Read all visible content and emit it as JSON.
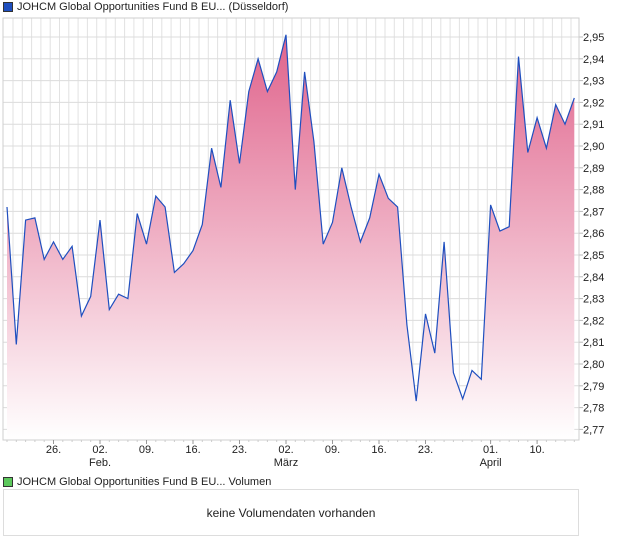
{
  "price_legend": {
    "label": "JOHCM Global Opportunities Fund B EU... (Düsseldorf)",
    "color": "#1f4fbf"
  },
  "volume_legend": {
    "label": "JOHCM Global Opportunities Fund B EU... Volumen",
    "color": "#5cc85c"
  },
  "volume_panel": {
    "message": "keine Volumendaten vorhanden"
  },
  "chart_data": {
    "type": "area",
    "title": "",
    "xlabel": "",
    "ylabel": "",
    "ylim": [
      2.764,
      2.959
    ],
    "grid": true,
    "line_color": "#1f4fbf",
    "fill_color": "#e0648c",
    "values": [
      2.872,
      2.809,
      2.866,
      2.867,
      2.848,
      2.856,
      2.848,
      2.854,
      2.822,
      2.831,
      2.866,
      2.825,
      2.832,
      2.83,
      2.869,
      2.855,
      2.877,
      2.872,
      2.842,
      2.846,
      2.852,
      2.864,
      2.899,
      2.881,
      2.921,
      2.892,
      2.925,
      2.94,
      2.925,
      2.934,
      2.951,
      2.88,
      2.934,
      2.902,
      2.855,
      2.865,
      2.89,
      2.872,
      2.856,
      2.867,
      2.887,
      2.876,
      2.872,
      2.818,
      2.783,
      2.823,
      2.805,
      2.856,
      2.796,
      2.784,
      2.797,
      2.793,
      2.873,
      2.861,
      2.863,
      2.941,
      2.897,
      2.913,
      2.899,
      2.919,
      2.91,
      2.922
    ],
    "x_ticks": [
      {
        "index": 5,
        "label": "26.",
        "sub": ""
      },
      {
        "index": 10,
        "label": "02.",
        "sub": "Feb."
      },
      {
        "index": 15,
        "label": "09.",
        "sub": ""
      },
      {
        "index": 20,
        "label": "16.",
        "sub": ""
      },
      {
        "index": 25,
        "label": "23.",
        "sub": ""
      },
      {
        "index": 30,
        "label": "02.",
        "sub": "März"
      },
      {
        "index": 35,
        "label": "09.",
        "sub": ""
      },
      {
        "index": 40,
        "label": "16.",
        "sub": ""
      },
      {
        "index": 45,
        "label": "23.",
        "sub": ""
      },
      {
        "index": 52,
        "label": "01.",
        "sub": "April"
      },
      {
        "index": 57,
        "label": "10.",
        "sub": ""
      }
    ],
    "y_ticks": [
      "2,77",
      "2,78",
      "2,79",
      "2,80",
      "2,81",
      "2,82",
      "2,83",
      "2,84",
      "2,85",
      "2,86",
      "2,87",
      "2,88",
      "2,89",
      "2,90",
      "2,91",
      "2,92",
      "2,93",
      "2,94",
      "2,95"
    ]
  }
}
